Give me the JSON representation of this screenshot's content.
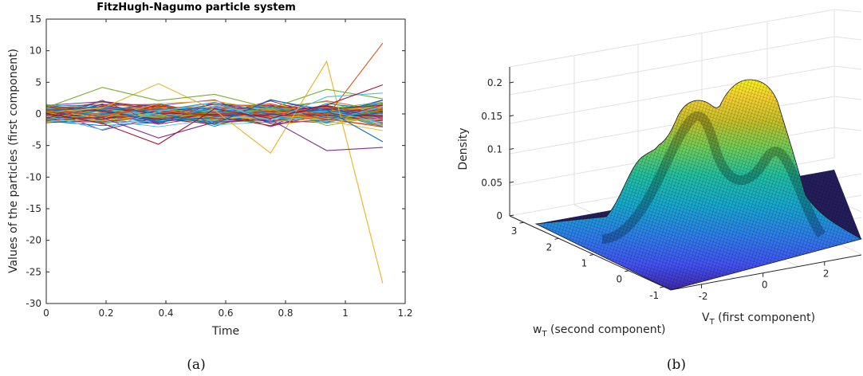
{
  "chart_data": [
    {
      "type": "line",
      "title": "FitzHugh-Nagumo particle system",
      "xlabel": "Time",
      "ylabel": "Values of the particles (first component)",
      "xlim": [
        0,
        1.2
      ],
      "ylim": [
        -30,
        15
      ],
      "x_ticks": [
        "0",
        "0.2",
        "0.4",
        "0.6",
        "0.8",
        "1",
        "1.2"
      ],
      "y_ticks": [
        "15",
        "10",
        "5",
        "0",
        "-5",
        "-10",
        "-15",
        "-20",
        "-25",
        "-30"
      ],
      "x": [
        0,
        0.1875,
        0.375,
        0.5625,
        0.75,
        0.9375,
        1.125
      ],
      "particle_count": 100,
      "highlighted_series": [
        {
          "color": "#EDB120",
          "values": [
            0.3,
            0.9,
            4.8,
            0.6,
            -6.2,
            8.3,
            -26.8
          ]
        },
        {
          "color": "#D95319",
          "values": [
            0.6,
            -0.4,
            1.1,
            0.9,
            1.6,
            -0.4,
            11.2
          ]
        },
        {
          "color": "#77AC30",
          "values": [
            1.0,
            4.2,
            2.1,
            3.1,
            0.9,
            3.9,
            2.4
          ]
        },
        {
          "color": "#7E2F8E",
          "values": [
            -0.6,
            -0.6,
            -3.8,
            -1.3,
            -0.9,
            -5.8,
            -5.3
          ]
        },
        {
          "color": "#0072BD",
          "values": [
            0.4,
            1.2,
            0.1,
            -1.6,
            2.2,
            0.6,
            -4.4
          ]
        },
        {
          "color": "#4DBEEE",
          "values": [
            -0.3,
            -2.5,
            0.4,
            1.8,
            -1.1,
            2.7,
            3.3
          ]
        },
        {
          "color": "#A2142F",
          "values": [
            0.1,
            -1.5,
            -4.8,
            0.8,
            -0.7,
            1.4,
            4.6
          ]
        }
      ],
      "caption": "(a)"
    },
    {
      "type": "surface",
      "zlabel": "Density",
      "xlabel_main": "V",
      "xlabel_sub": "T",
      "xlabel_rest": " (first component)",
      "ylabel_main": "w",
      "ylabel_sub": "T",
      "ylabel_rest": " (second component)",
      "z_ticks": [
        "0.2",
        "0.15",
        "0.1",
        "0.05",
        "0"
      ],
      "v_ticks": [
        "-2",
        "0",
        "2"
      ],
      "w_ticks": [
        "3",
        "2",
        "1",
        "0",
        "-1"
      ],
      "zlim": [
        0,
        0.22
      ],
      "density_modes": [
        {
          "v": -0.9,
          "w": 0.8,
          "height": 0.155
        },
        {
          "v": 0.9,
          "w": 1.0,
          "height": 0.205
        },
        {
          "v": -1.2,
          "w": -0.3,
          "height": 0.08
        }
      ],
      "caption": "(b)"
    }
  ],
  "colors": {
    "matlab_lines": [
      "#0072BD",
      "#D95319",
      "#EDB120",
      "#7E2F8E",
      "#77AC30",
      "#4DBEEE",
      "#A2142F"
    ],
    "surface_colormap": [
      "#3e26a8",
      "#4352f2",
      "#2c7fe8",
      "#16a8cd",
      "#22c0a0",
      "#6ccd5a",
      "#c2c02b",
      "#f6d030",
      "#f9fb15"
    ]
  }
}
